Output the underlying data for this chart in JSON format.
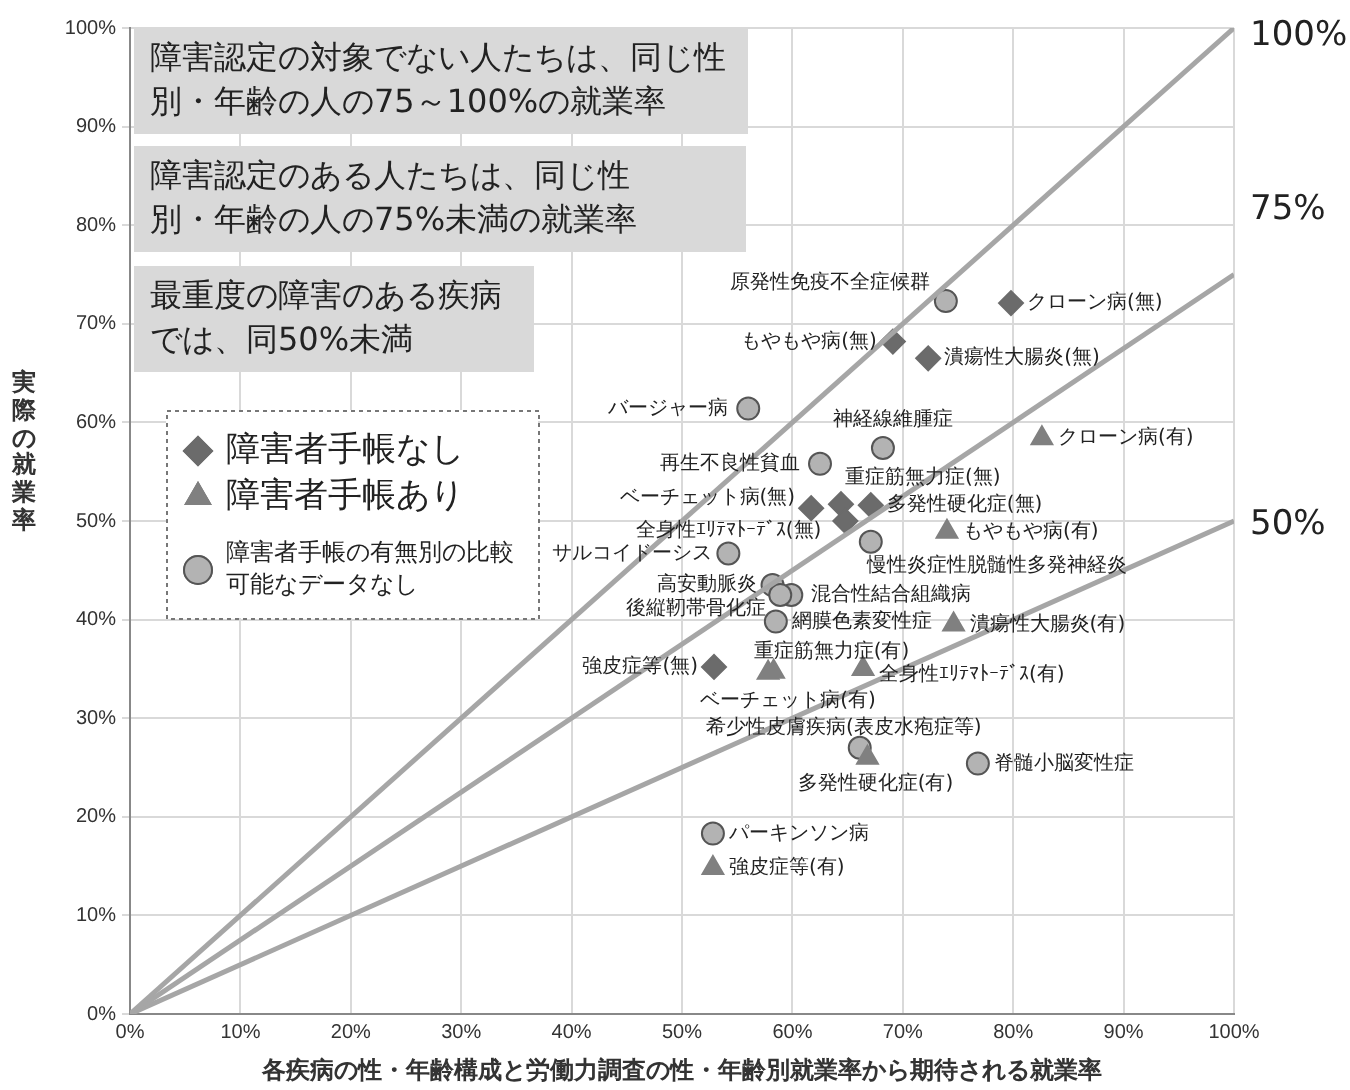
{
  "chart_data": {
    "type": "scatter",
    "xlabel": "各疾病の性・年齢構成と労働力調査の性・年齢別就業率から期待される就業率",
    "ylabel": "実際の就業率",
    "xlim": [
      0,
      100
    ],
    "ylim": [
      0,
      100
    ],
    "xticks": [
      {
        "value": 0,
        "label": "0%"
      },
      {
        "value": 10,
        "label": "10%"
      },
      {
        "value": 20,
        "label": "20%"
      },
      {
        "value": 30,
        "label": "30%"
      },
      {
        "value": 40,
        "label": "40%"
      },
      {
        "value": 50,
        "label": "50%"
      },
      {
        "value": 60,
        "label": "60%"
      },
      {
        "value": 70,
        "label": "70%"
      },
      {
        "value": 80,
        "label": "80%"
      },
      {
        "value": 90,
        "label": "90%"
      },
      {
        "value": 100,
        "label": "100%"
      }
    ],
    "yticks": [
      {
        "value": 0,
        "label": "0%"
      },
      {
        "value": 10,
        "label": "10%"
      },
      {
        "value": 20,
        "label": "20%"
      },
      {
        "value": 30,
        "label": "30%"
      },
      {
        "value": 40,
        "label": "40%"
      },
      {
        "value": 50,
        "label": "50%"
      },
      {
        "value": 60,
        "label": "60%"
      },
      {
        "value": 70,
        "label": "70%"
      },
      {
        "value": 80,
        "label": "80%"
      },
      {
        "value": 90,
        "label": "90%"
      },
      {
        "value": 100,
        "label": "100%"
      }
    ],
    "grid": true,
    "legend": "left",
    "series": [
      {
        "type": "line",
        "color": "#a6a6a6",
        "marker": "none",
        "x": [
          0,
          100
        ],
        "values": [
          0,
          100
        ]
      },
      {
        "type": "line",
        "color": "#a6a6a6",
        "marker": "none",
        "x": [
          0,
          100
        ],
        "values": [
          0,
          75
        ]
      },
      {
        "type": "line",
        "color": "#a6a6a6",
        "marker": "none",
        "x": [
          0,
          100
        ],
        "values": [
          0,
          50
        ]
      },
      {
        "name": "障害者手帳なし",
        "type": "scatter",
        "marker": "diamond",
        "color": "#6b6b6b",
        "x": [
          79.8,
          69.1,
          72.3,
          61.7,
          64.4,
          67.1,
          64.8,
          52.9
        ],
        "values": [
          72.1,
          68.2,
          66.5,
          51.3,
          51.7,
          51.6,
          50.0,
          35.2
        ]
      },
      {
        "name": "障害者手帳あり",
        "type": "scatter",
        "marker": "triangle",
        "color": "#808080",
        "x": [
          82.6,
          74.0,
          74.6,
          58.3,
          57.8,
          66.4,
          66.8,
          52.8
        ],
        "values": [
          58.4,
          48.9,
          39.5,
          34.7,
          34.6,
          35.0,
          26.0,
          14.8
        ]
      },
      {
        "name": "障害者手帳の有無別の比較可能なデータなし",
        "type": "scatter",
        "marker": "circle",
        "color": "#b3b3b3",
        "x": [
          73.9,
          56.0,
          68.2,
          62.5,
          67.1,
          54.2,
          58.2,
          59.9,
          58.9,
          58.5,
          66.1,
          76.8,
          52.8
        ],
        "values": [
          72.3,
          61.4,
          57.4,
          55.8,
          47.9,
          46.7,
          43.5,
          42.5,
          42.5,
          39.8,
          27.0,
          25.4,
          18.3
        ]
      }
    ],
    "annotations": [
      "障害認定の対象でない人たちは、同じ性別・年齢の人の75～100%の就業率",
      "障害認定のある人たちは、同じ性別・年齢の人の75%未満の就業率",
      "最重度の障害のある疾病では、同50%未満",
      {
        "text": "原発性免疫不全症候群",
        "x": 73.9,
        "y": 72.3
      },
      {
        "text": "クローン病(無)",
        "x": 79.8,
        "y": 72.1
      },
      {
        "text": "もやもや病(無)",
        "x": 69.1,
        "y": 68.2
      },
      {
        "text": "潰瘍性大腸炎(無)",
        "x": 72.3,
        "y": 66.5
      },
      {
        "text": "バージャー病",
        "x": 56.0,
        "y": 61.4
      },
      {
        "text": "神経線維腫症",
        "x": 68.2,
        "y": 57.4
      },
      {
        "text": "クローン病(有)",
        "x": 82.6,
        "y": 58.4
      },
      {
        "text": "再生不良性貧血",
        "x": 62.5,
        "y": 55.8
      },
      {
        "text": "重症筋無力症(無)",
        "x": 64.4,
        "y": 51.7
      },
      {
        "text": "ベーチェット病(無)",
        "x": 61.7,
        "y": 51.3
      },
      {
        "text": "多発性硬化症(無)",
        "x": 67.1,
        "y": 51.6
      },
      {
        "text": "全身性ｴﾘﾃﾏﾄｰﾃﾞｽ(無)",
        "x": 64.8,
        "y": 50.0
      },
      {
        "text": "もやもや病(有)",
        "x": 74.0,
        "y": 48.9
      },
      {
        "text": "慢性炎症性脱髄性多発神経炎",
        "x": 67.1,
        "y": 47.9
      },
      {
        "text": "サルコイドーシス",
        "x": 54.2,
        "y": 46.7
      },
      {
        "text": "高安動脈炎",
        "x": 58.2,
        "y": 43.5
      },
      {
        "text": "混合性結合組織病",
        "x": 59.9,
        "y": 42.5
      },
      {
        "text": "後縦靭帯骨化症",
        "x": 58.9,
        "y": 42.5
      },
      {
        "text": "網膜色素変性症",
        "x": 58.5,
        "y": 39.8
      },
      {
        "text": "潰瘍性大腸炎(有)",
        "x": 74.6,
        "y": 39.5
      },
      {
        "text": "強皮症等(無)",
        "x": 52.9,
        "y": 35.2
      },
      {
        "text": "重症筋無力症(有)",
        "x": 58.3,
        "y": 34.7
      },
      {
        "text": "ベーチェット病(有)",
        "x": 57.8,
        "y": 34.6
      },
      {
        "text": "全身性ｴﾘﾃﾏﾄｰﾃﾞｽ(有)",
        "x": 66.4,
        "y": 35.0
      },
      {
        "text": "希少性皮膚疾病(表皮水疱症等)",
        "x": 66.1,
        "y": 27.0
      },
      {
        "text": "多発性硬化症(有)",
        "x": 66.8,
        "y": 26.0
      },
      {
        "text": "脊髄小脳変性症",
        "x": 76.8,
        "y": 25.4
      },
      {
        "text": "パーキンソン病",
        "x": 52.8,
        "y": 18.3
      },
      {
        "text": "強皮症等(有)",
        "x": 52.8,
        "y": 14.8
      },
      {
        "text": "100%",
        "x": 100,
        "y": 100
      },
      {
        "text": "75%",
        "x": 100,
        "y": 75
      },
      {
        "text": "50%",
        "x": 100,
        "y": 50
      }
    ]
  }
}
